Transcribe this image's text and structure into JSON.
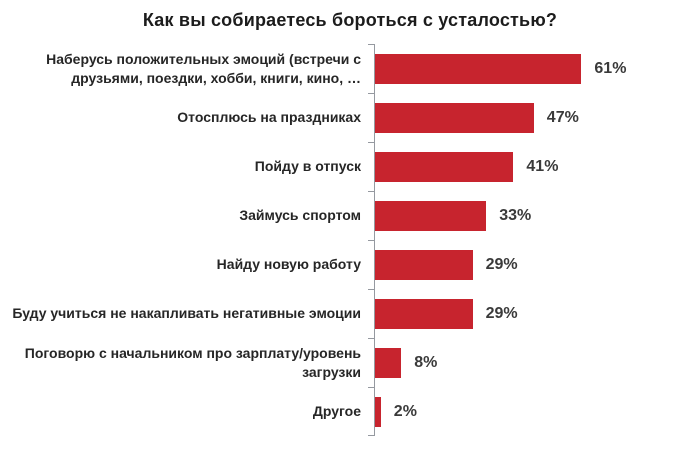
{
  "chart_data": {
    "type": "bar",
    "orientation": "horizontal",
    "title": "Как вы собираетесь бороться с усталостью?",
    "categories": [
      "Наберусь положительных эмоций (встречи с друзьями, поездки, хобби, книги, кино, …",
      "Отосплюсь на праздниках",
      "Пойду в отпуск",
      "Займусь спортом",
      "Найду новую работу",
      "Буду учиться не накапливать негативные эмоции",
      "Поговорю с начальником про зарплату/уровень загрузки",
      "Другое"
    ],
    "values": [
      61,
      47,
      41,
      33,
      29,
      29,
      8,
      2
    ],
    "value_labels": [
      "61%",
      "47%",
      "41%",
      "33%",
      "29%",
      "29%",
      "8%",
      "2%"
    ],
    "value_suffix": "%",
    "xlim": [
      0,
      65
    ],
    "grid": false,
    "legend": false,
    "xlabel": "",
    "ylabel": "",
    "colors": {
      "bar": "#c7242e",
      "axis": "#9599a0",
      "title": "#1c1c1c",
      "category_label": "#262626",
      "value_label": "#3a3a3a",
      "background": "#ffffff"
    }
  }
}
